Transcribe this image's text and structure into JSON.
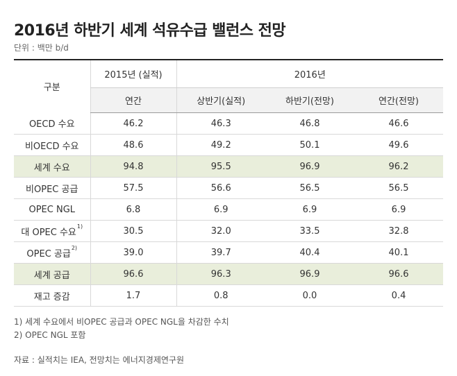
{
  "title": "2016년 하반기 세계 석유수급 밸런스 전망",
  "unit": "단위 : 백만 b/d",
  "header": {
    "category": "구분",
    "group_2015": "2015년 (실적)",
    "group_2016": "2016년",
    "columns": [
      "연간",
      "상반기(실적)",
      "하반기(전망)",
      "연간(전망)"
    ]
  },
  "rows": [
    {
      "label": "OECD 수요",
      "sup": "",
      "values": [
        "46.2",
        "46.3",
        "46.8",
        "46.6"
      ],
      "highlight": false
    },
    {
      "label": "비OECD 수요",
      "sup": "",
      "values": [
        "48.6",
        "49.2",
        "50.1",
        "49.6"
      ],
      "highlight": false
    },
    {
      "label": "세계 수요",
      "sup": "",
      "values": [
        "94.8",
        "95.5",
        "96.9",
        "96.2"
      ],
      "highlight": true
    },
    {
      "label": "비OPEC 공급",
      "sup": "",
      "values": [
        "57.5",
        "56.6",
        "56.5",
        "56.5"
      ],
      "highlight": false
    },
    {
      "label": "OPEC NGL",
      "sup": "",
      "values": [
        "6.8",
        "6.9",
        "6.9",
        "6.9"
      ],
      "highlight": false
    },
    {
      "label": "대 OPEC 수요",
      "sup": "1)",
      "values": [
        "30.5",
        "32.0",
        "33.5",
        "32.8"
      ],
      "highlight": false
    },
    {
      "label": "OPEC 공급",
      "sup": "2)",
      "values": [
        "39.0",
        "39.7",
        "40.4",
        "40.1"
      ],
      "highlight": false
    },
    {
      "label": "세계 공급",
      "sup": "",
      "values": [
        "96.6",
        "96.3",
        "96.9",
        "96.6"
      ],
      "highlight": true
    },
    {
      "label": "재고 증감",
      "sup": "",
      "values": [
        "1.7",
        "0.8",
        "0.0",
        "0.4"
      ],
      "highlight": false
    }
  ],
  "notes": [
    "1) 세계 수요에서 비OPEC 공급과 OPEC NGL을 차감한 수치",
    "2) OPEC NGL 포함"
  ],
  "source": "자료 : 실적치는 IEA, 전망치는 에너지경제연구원",
  "colors": {
    "highlight_row": "#e9eedb",
    "subheader_bg": "#f2f2f2",
    "top_rule": "#222222"
  }
}
